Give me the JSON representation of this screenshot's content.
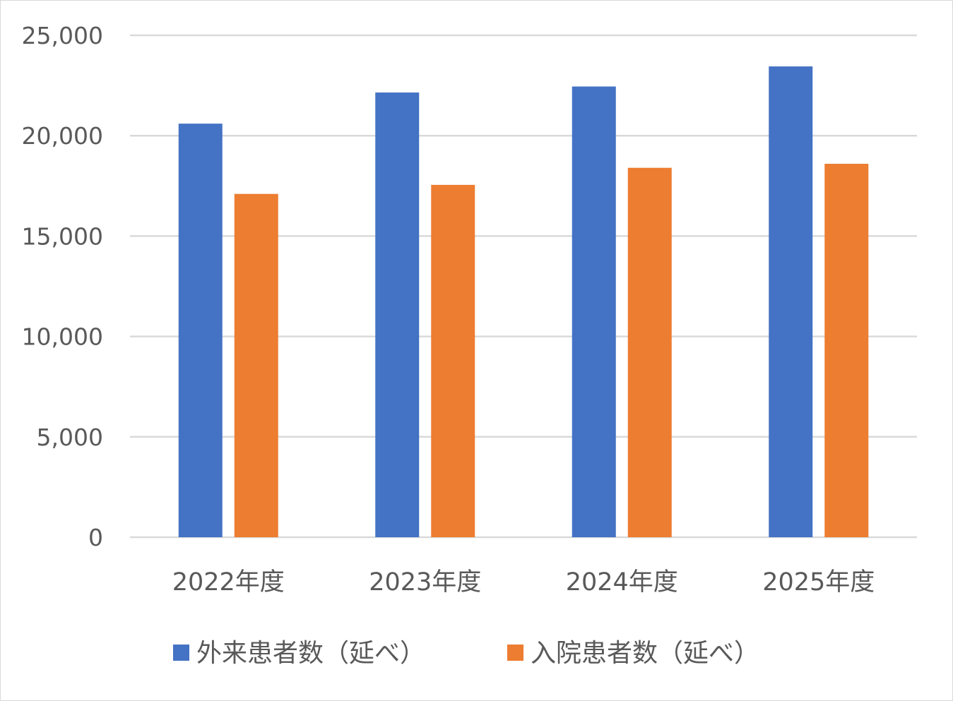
{
  "chart_data": {
    "type": "bar",
    "title": "",
    "xlabel": "",
    "ylabel": "",
    "categories": [
      "2022年度",
      "2023年度",
      "2024年度",
      "2025年度"
    ],
    "series": [
      {
        "name": "外来患者数（延べ）",
        "color": "#4472C4",
        "values": [
          20600,
          22150,
          22450,
          23450
        ]
      },
      {
        "name": "入院患者数（延べ）",
        "color": "#ED7D31",
        "values": [
          17100,
          17550,
          18400,
          18600
        ]
      }
    ],
    "ylim": [
      0,
      25000
    ],
    "yticks": [
      0,
      5000,
      10000,
      15000,
      20000,
      25000
    ],
    "ytick_labels": [
      "0",
      "5,000",
      "10,000",
      "15,000",
      "20,000",
      "25,000"
    ],
    "grid": true,
    "gridline_color": "#d9d9d9",
    "text_color": "#595959",
    "legend_position": "bottom"
  }
}
